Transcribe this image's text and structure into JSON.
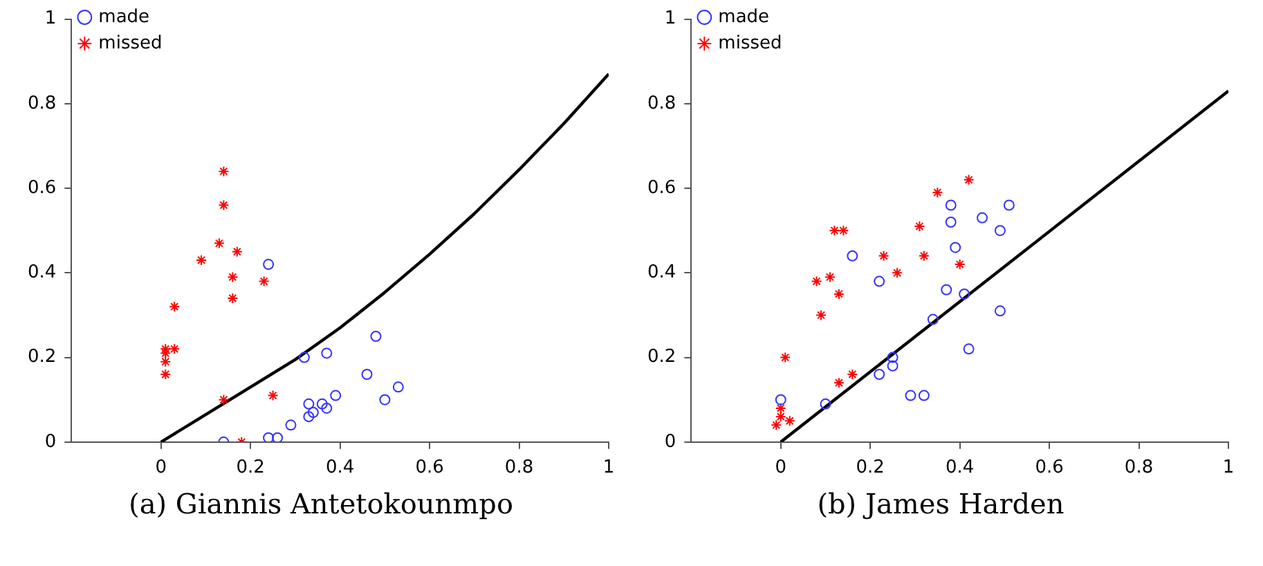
{
  "chart_data": [
    {
      "type": "scatter",
      "title": "(a) Giannis Antetokounmpo",
      "xlim": [
        -0.2,
        1
      ],
      "ylim": [
        0,
        1
      ],
      "xticks": [
        0,
        0.2,
        0.4,
        0.6,
        0.8,
        1
      ],
      "yticks": [
        0,
        0.2,
        0.4,
        0.6,
        0.8,
        1
      ],
      "grid": false,
      "legend": "top left",
      "series": [
        {
          "name": "made",
          "color": "#3333ff",
          "marker": "circle",
          "x": [
            0.24,
            0.48,
            0.37,
            0.32,
            0.46,
            0.53,
            0.5,
            0.39,
            0.33,
            0.36,
            0.37,
            0.34,
            0.33,
            0.29,
            0.24,
            0.26,
            0.14
          ],
          "values": [
            0.42,
            0.25,
            0.21,
            0.2,
            0.16,
            0.13,
            0.1,
            0.11,
            0.09,
            0.09,
            0.08,
            0.07,
            0.06,
            0.04,
            0.01,
            0.01,
            0.0
          ]
        },
        {
          "name": "missed",
          "color": "#ff0000",
          "marker": "cross",
          "x": [
            0.14,
            0.14,
            0.13,
            0.17,
            0.09,
            0.16,
            0.23,
            0.16,
            0.03,
            0.01,
            0.03,
            0.01,
            0.01,
            0.01,
            0.14,
            0.25,
            0.18
          ],
          "values": [
            0.64,
            0.56,
            0.47,
            0.45,
            0.43,
            0.39,
            0.38,
            0.34,
            0.32,
            0.22,
            0.22,
            0.21,
            0.19,
            0.16,
            0.1,
            0.11,
            0.0
          ]
        },
        {
          "type": "line",
          "color": "#000000",
          "marker": "none",
          "x": [
            0,
            0.1,
            0.2,
            0.3,
            0.4,
            0.5,
            0.6,
            0.7,
            0.8,
            0.9,
            1
          ],
          "values": [
            0,
            0.065,
            0.13,
            0.195,
            0.27,
            0.354,
            0.444,
            0.54,
            0.644,
            0.753,
            0.87
          ]
        }
      ]
    },
    {
      "type": "scatter",
      "title": "(b) James Harden",
      "xlim": [
        -0.2,
        1
      ],
      "ylim": [
        0,
        1
      ],
      "xticks": [
        0,
        0.2,
        0.4,
        0.6,
        0.8,
        1
      ],
      "yticks": [
        0,
        0.2,
        0.4,
        0.6,
        0.8,
        1
      ],
      "grid": false,
      "legend": "top left",
      "series": [
        {
          "name": "made",
          "color": "#3333ff",
          "marker": "circle",
          "x": [
            0.38,
            0.51,
            0.38,
            0.45,
            0.49,
            0.39,
            0.16,
            0.22,
            0.37,
            0.41,
            0.49,
            0.34,
            0.42,
            0.25,
            0.25,
            0.22,
            0.29,
            0.32,
            0.1,
            0.0
          ],
          "values": [
            0.56,
            0.56,
            0.52,
            0.53,
            0.5,
            0.46,
            0.44,
            0.38,
            0.36,
            0.35,
            0.31,
            0.29,
            0.22,
            0.2,
            0.18,
            0.16,
            0.11,
            0.11,
            0.09,
            0.1
          ]
        },
        {
          "name": "missed",
          "color": "#ff0000",
          "marker": "cross",
          "x": [
            0.42,
            0.35,
            0.12,
            0.14,
            0.31,
            0.23,
            0.32,
            0.4,
            0.26,
            0.08,
            0.11,
            0.13,
            0.09,
            0.01,
            0.16,
            0.13,
            0.0,
            0.0,
            -0.01,
            0.02
          ],
          "values": [
            0.62,
            0.59,
            0.5,
            0.5,
            0.51,
            0.44,
            0.44,
            0.42,
            0.4,
            0.38,
            0.39,
            0.35,
            0.3,
            0.2,
            0.16,
            0.14,
            0.08,
            0.06,
            0.04,
            0.05
          ]
        },
        {
          "type": "line",
          "color": "#000000",
          "marker": "none",
          "x": [
            0,
            1
          ],
          "values": [
            0,
            0.83
          ]
        }
      ]
    }
  ]
}
